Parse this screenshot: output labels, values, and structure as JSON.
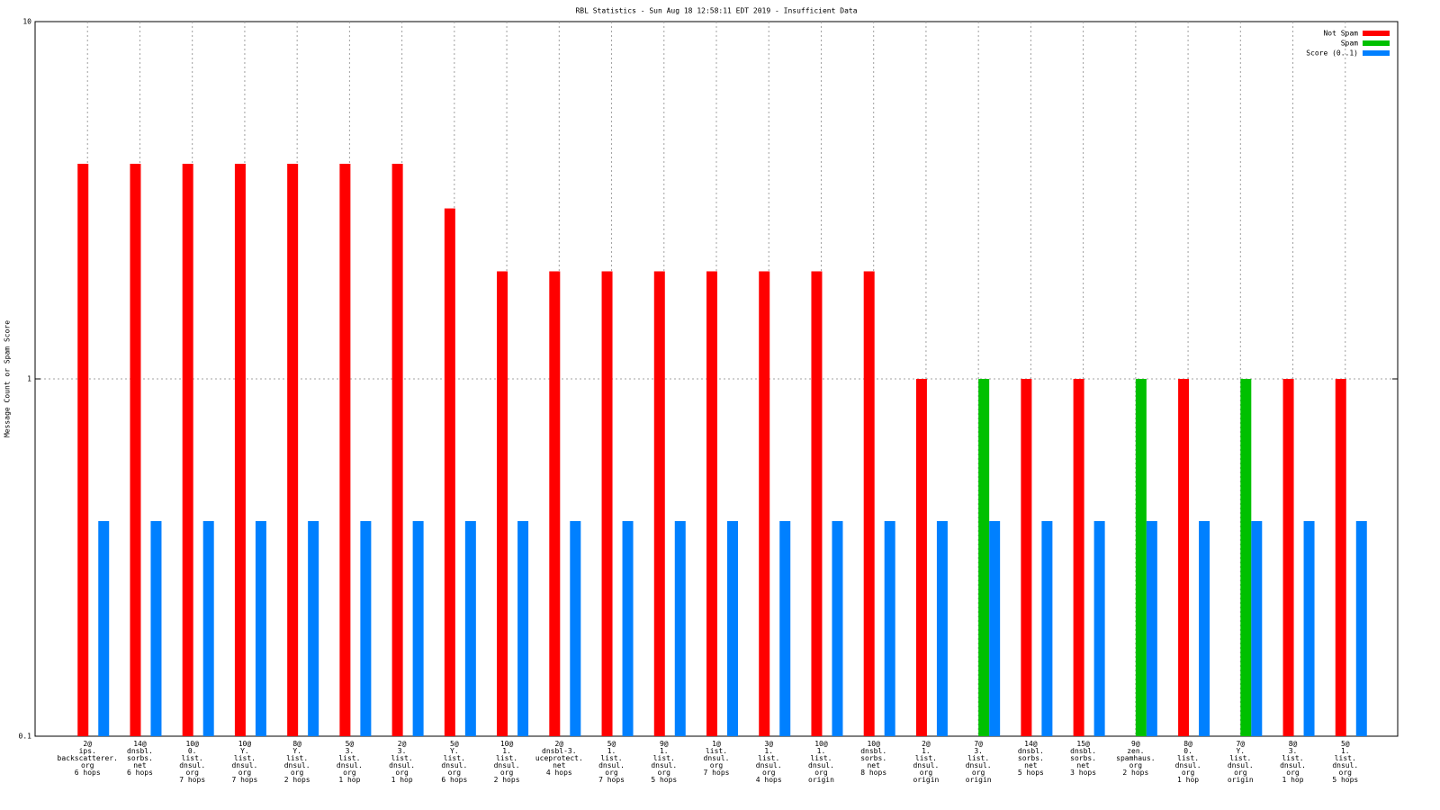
{
  "chart_data": {
    "type": "bar",
    "title": "RBL Statistics - Sun Aug 18 12:58:11 EDT 2019 - Insufficient Data",
    "y_label": "Message Count or Spam Score",
    "categories": [
      "2@\nips.\nbackscatterer.\norg\n6 hops",
      "14@\ndnsbl.\nsorbs.\nnet\n6 hops",
      "10@\n0.\nlist.\ndnsul.\norg\n7 hops",
      "10@\nY.\nlist.\ndnsul.\norg\n7 hops",
      "8@\nY.\nlist.\ndnsul.\norg\n2 hops",
      "5@\n3.\nlist.\ndnsul.\norg\n1 hop",
      "2@\n3.\nlist.\ndnsul.\norg\n1 hop",
      "5@\nY.\nlist.\ndnsul.\norg\n6 hops",
      "10@\n1.\nlist.\ndnsul.\norg\n2 hops",
      "2@\ndnsbl-3.\nuceprotect.\nnet\n4 hops",
      "5@\n1.\nlist.\ndnsul.\norg\n7 hops",
      "9@\n1.\nlist.\ndnsul.\norg\n5 hops",
      "1@\nlist.\ndnsul.\norg\n7 hops",
      "3@\n1.\nlist.\ndnsul.\norg\n4 hops",
      "10@\n1.\nlist.\ndnsul.\norg\norigin",
      "10@\ndnsbl.\nsorbs.\nnet\n8 hops",
      "2@\n1.\nlist.\ndnsul.\norg\norigin",
      "7@\n3.\nlist.\ndnsul.\norg\norigin",
      "14@\ndnsbl.\nsorbs.\nnet\n5 hops",
      "15@\ndnsbl.\nsorbs.\nnet\n3 hops",
      "9@\nzen.\nspamhaus.\norg\n2 hops",
      "8@\n0.\nlist.\ndnsul.\norg\n1 hop",
      "7@\nY.\nlist.\ndnsul.\norg\norigin",
      "8@\n3.\nlist.\ndnsul.\norg\n1 hop",
      "5@\n1.\nlist.\ndnsul.\norg\n5 hops"
    ],
    "series": [
      {
        "name": "Not Spam",
        "color": "#ff0000",
        "values": [
          4,
          4,
          4,
          4,
          4,
          4,
          4,
          3,
          2,
          2,
          2,
          2,
          2,
          2,
          2,
          2,
          1,
          null,
          1,
          1,
          null,
          1,
          null,
          1,
          1
        ]
      },
      {
        "name": "Spam",
        "color": "#00c000",
        "values": [
          null,
          null,
          null,
          null,
          null,
          null,
          null,
          null,
          null,
          null,
          null,
          null,
          null,
          null,
          null,
          null,
          null,
          1,
          null,
          null,
          1,
          null,
          1,
          null,
          null
        ]
      },
      {
        "name": "Score (0..1)",
        "color": "#0080ff",
        "values": [
          0.4,
          0.4,
          0.4,
          0.4,
          0.4,
          0.4,
          0.4,
          0.4,
          0.4,
          0.4,
          0.4,
          0.4,
          0.4,
          0.4,
          0.4,
          0.4,
          0.4,
          0.4,
          0.4,
          0.4,
          0.4,
          0.4,
          0.4,
          0.4,
          0.4
        ]
      }
    ],
    "log_y": true,
    "ylim": [
      0.1,
      10
    ],
    "yticks": [
      0.1,
      1,
      10
    ],
    "grid": true,
    "legend": "top-right"
  }
}
